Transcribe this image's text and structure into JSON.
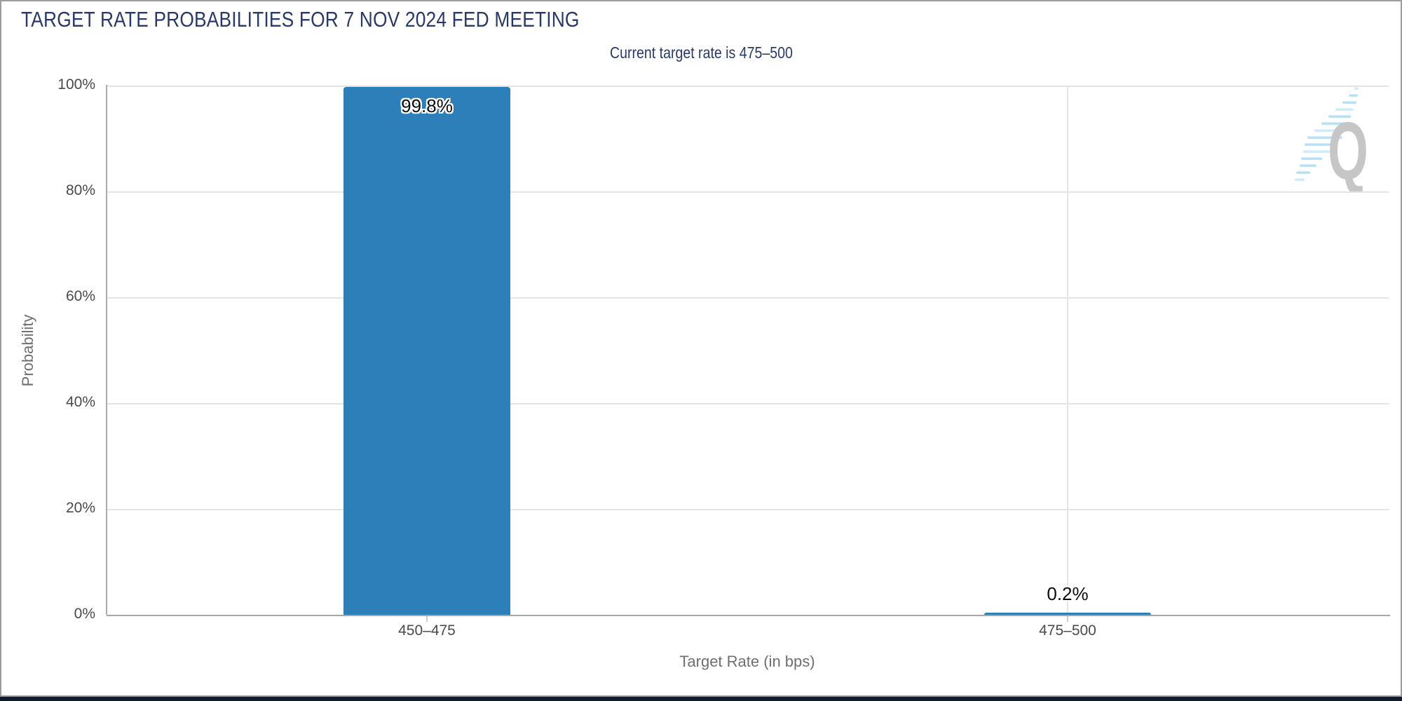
{
  "header": {
    "title": "TARGET RATE PROBABILITIES FOR 7 NOV 2024 FED MEETING",
    "subtitle": "Current target rate is 475–500"
  },
  "chart_data": {
    "type": "bar",
    "title": "TARGET RATE PROBABILITIES FOR 7 NOV 2024 FED MEETING",
    "subtitle": "Current target rate is 475–500",
    "categories": [
      "450–475",
      "475–500"
    ],
    "values": [
      99.8,
      0.2
    ],
    "value_labels": [
      "99.8%",
      "0.2%"
    ],
    "xlabel": "Target Rate (in bps)",
    "ylabel": "Probability",
    "yticks": [
      "100%",
      "80%",
      "60%",
      "40%",
      "20%",
      "0%"
    ],
    "ylim": [
      0,
      100
    ],
    "grid": "horizontal lines every 20%; vertical line at each category center",
    "legend": "none",
    "bar_color": "#2c7fb8"
  },
  "watermark": {
    "letter": "Q"
  },
  "colors": {
    "title_navy": "#28396b",
    "bar_blue": "#2c7fb8",
    "footer_navy": "#101a2d",
    "gridline": "#e4e4e4",
    "axis_line": "#a6a6a6",
    "tick_text": "#4a4a4a",
    "axis_title_text": "#6f6f6f",
    "logo_gray": "#c6c6c6",
    "logo_blue": "#b3e2f9"
  }
}
